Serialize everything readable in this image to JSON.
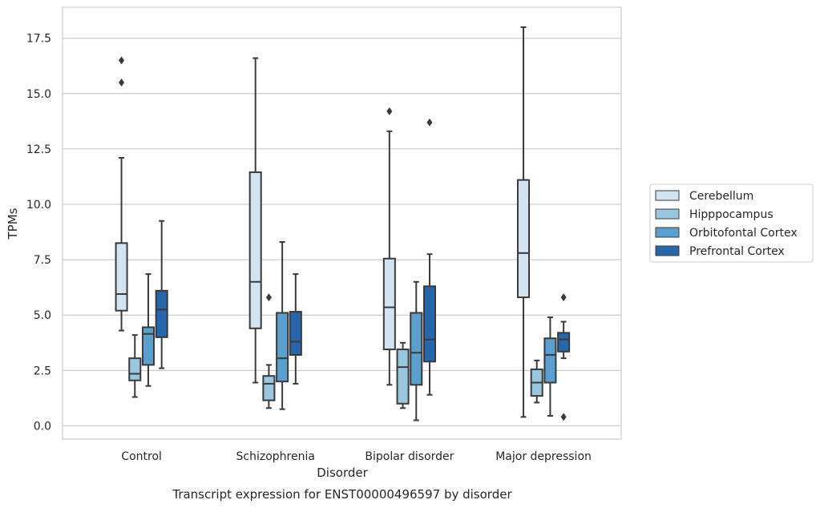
{
  "chart_data": {
    "type": "box",
    "title": "",
    "caption": "Transcript expression for ENST00000496597 by disorder",
    "xlabel": "Disorder",
    "ylabel": "TPMs",
    "ylim": [
      -0.6,
      18.9
    ],
    "yticks": [
      "0.0",
      "2.5",
      "5.0",
      "7.5",
      "10.0",
      "12.5",
      "15.0",
      "17.5"
    ],
    "grid": "horizontal",
    "legend_position": "right",
    "categories": [
      "Control",
      "Schizophrenia",
      "Bipolar disorder",
      "Major depression"
    ],
    "series": [
      {
        "name": "Cerebellum",
        "color": "#d3e3f2",
        "boxes": [
          {
            "whislo": 4.3,
            "q1": 5.2,
            "med": 5.95,
            "q3": 8.25,
            "whishi": 12.1,
            "fliers": [
              15.5,
              16.5
            ]
          },
          {
            "whislo": 1.95,
            "q1": 4.4,
            "med": 6.5,
            "q3": 11.45,
            "whishi": 16.6,
            "fliers": []
          },
          {
            "whislo": 1.85,
            "q1": 3.45,
            "med": 5.35,
            "q3": 7.55,
            "whishi": 13.3,
            "fliers": [
              14.2
            ]
          },
          {
            "whislo": 0.4,
            "q1": 5.8,
            "med": 7.8,
            "q3": 11.1,
            "whishi": 18.0,
            "fliers": []
          }
        ]
      },
      {
        "name": "Hipppocampus",
        "color": "#9ac7e0",
        "boxes": [
          {
            "whislo": 1.3,
            "q1": 2.05,
            "med": 2.35,
            "q3": 3.05,
            "whishi": 4.1,
            "fliers": []
          },
          {
            "whislo": 0.8,
            "q1": 1.15,
            "med": 1.9,
            "q3": 2.25,
            "whishi": 2.75,
            "fliers": [
              5.8
            ]
          },
          {
            "whislo": 0.8,
            "q1": 1.0,
            "med": 2.65,
            "q3": 3.45,
            "whishi": 3.75,
            "fliers": []
          },
          {
            "whislo": 1.05,
            "q1": 1.35,
            "med": 1.95,
            "q3": 2.55,
            "whishi": 2.95,
            "fliers": []
          }
        ]
      },
      {
        "name": "Orbitofontal Cortex",
        "color": "#5a9fcd",
        "boxes": [
          {
            "whislo": 1.8,
            "q1": 2.75,
            "med": 4.15,
            "q3": 4.45,
            "whishi": 6.85,
            "fliers": []
          },
          {
            "whislo": 0.75,
            "q1": 2.0,
            "med": 3.05,
            "q3": 5.1,
            "whishi": 8.3,
            "fliers": []
          },
          {
            "whislo": 0.25,
            "q1": 1.85,
            "med": 3.3,
            "q3": 5.1,
            "whishi": 6.5,
            "fliers": []
          },
          {
            "whislo": 0.45,
            "q1": 1.95,
            "med": 3.2,
            "q3": 3.95,
            "whishi": 4.9,
            "fliers": []
          }
        ]
      },
      {
        "name": "Prefrontal Cortex",
        "color": "#2667ab",
        "boxes": [
          {
            "whislo": 2.6,
            "q1": 4.0,
            "med": 5.25,
            "q3": 6.1,
            "whishi": 9.25,
            "fliers": []
          },
          {
            "whislo": 1.9,
            "q1": 3.2,
            "med": 3.8,
            "q3": 5.15,
            "whishi": 6.85,
            "fliers": []
          },
          {
            "whislo": 1.4,
            "q1": 2.9,
            "med": 3.9,
            "q3": 6.3,
            "whishi": 7.75,
            "fliers": [
              13.7
            ]
          },
          {
            "whislo": 3.05,
            "q1": 3.35,
            "med": 3.9,
            "q3": 4.2,
            "whishi": 4.7,
            "fliers": [
              0.4,
              5.8
            ]
          }
        ]
      }
    ]
  }
}
